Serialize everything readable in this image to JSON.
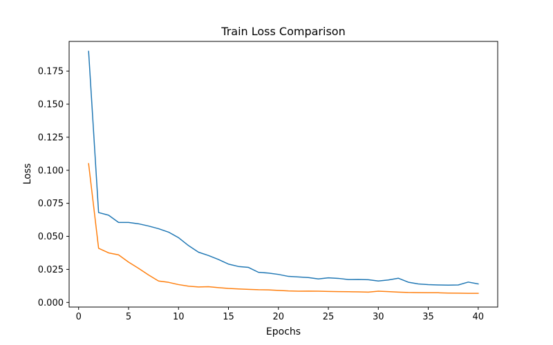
{
  "chart_data": {
    "type": "line",
    "title": "Train Loss Comparison",
    "xlabel": "Epochs",
    "ylabel": "Loss",
    "xlim": [
      -0.95,
      41.95
    ],
    "ylim": [
      -0.0035,
      0.1975
    ],
    "xticks": [
      0,
      5,
      10,
      15,
      20,
      25,
      30,
      35,
      40
    ],
    "xtick_labels": [
      "0",
      "5",
      "10",
      "15",
      "20",
      "25",
      "30",
      "35",
      "40"
    ],
    "yticks": [
      0.0,
      0.025,
      0.05,
      0.075,
      0.1,
      0.125,
      0.15,
      0.175
    ],
    "ytick_labels": [
      "0.000",
      "0.025",
      "0.050",
      "0.075",
      "0.100",
      "0.125",
      "0.150",
      "0.175"
    ],
    "grid": false,
    "x": [
      1,
      2,
      3,
      4,
      5,
      6,
      7,
      8,
      9,
      10,
      11,
      12,
      13,
      14,
      15,
      16,
      17,
      18,
      19,
      20,
      21,
      22,
      23,
      24,
      25,
      26,
      27,
      28,
      29,
      30,
      31,
      32,
      33,
      34,
      35,
      36,
      37,
      38,
      39,
      40
    ],
    "series": [
      {
        "color": "#1f77b4",
        "values": [
          0.19,
          0.068,
          0.066,
          0.0605,
          0.0605,
          0.0595,
          0.0578,
          0.0558,
          0.0532,
          0.049,
          0.043,
          0.038,
          0.0355,
          0.0325,
          0.029,
          0.0272,
          0.0265,
          0.0228,
          0.0222,
          0.0212,
          0.0197,
          0.0193,
          0.0188,
          0.0178,
          0.0186,
          0.0182,
          0.0173,
          0.0174,
          0.0172,
          0.0162,
          0.017,
          0.0183,
          0.0153,
          0.014,
          0.0135,
          0.0132,
          0.0131,
          0.0132,
          0.0154,
          0.014
        ]
      },
      {
        "color": "#ff7f0e",
        "values": [
          0.105,
          0.041,
          0.0375,
          0.036,
          0.0305,
          0.0258,
          0.0208,
          0.0162,
          0.0152,
          0.0135,
          0.0123,
          0.0117,
          0.0119,
          0.0112,
          0.0106,
          0.0102,
          0.0099,
          0.0096,
          0.0095,
          0.0091,
          0.0087,
          0.0085,
          0.0086,
          0.0085,
          0.0083,
          0.0082,
          0.0081,
          0.008,
          0.0078,
          0.0085,
          0.0082,
          0.0078,
          0.0075,
          0.0074,
          0.0073,
          0.0073,
          0.0071,
          0.007,
          0.0069,
          0.0069
        ]
      }
    ]
  }
}
